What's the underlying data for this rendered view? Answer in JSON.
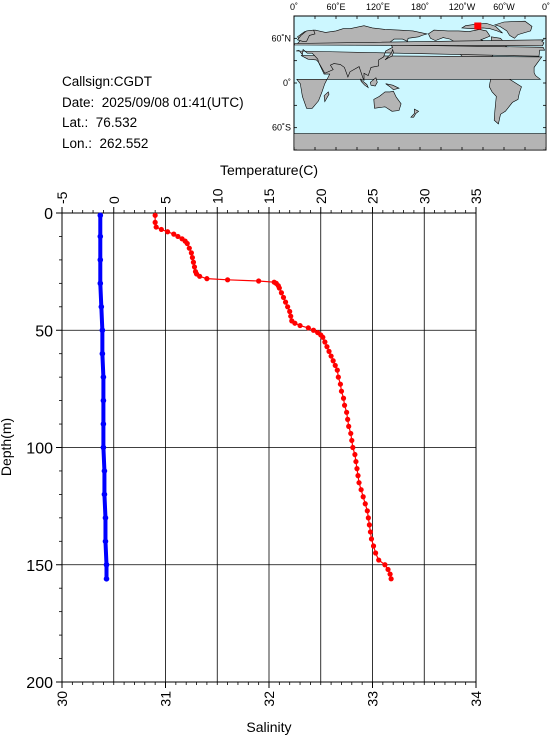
{
  "station": {
    "callsign": "Callsign:CGDT",
    "date_label": "Date:",
    "date_value": "2025/09/08 01:41(UTC)",
    "lat_label": "Lat.:",
    "lat_value": "76.532",
    "lon_label": "Lon.:",
    "lon_value": "262.552"
  },
  "map": {
    "top_ticks": [
      "0˚",
      "60˚E",
      "120˚E",
      "180˚",
      "120˚W",
      "60˚W",
      "0˚"
    ],
    "lat_ticks": [
      "60˚N",
      "0˚",
      "60˚S"
    ],
    "marker_lat": 76.532,
    "marker_lon": 262.552,
    "colors": {
      "ocean": "#ccf7ff",
      "land": "#b4b4b4",
      "coast": "#000000",
      "marker": "#ff0000"
    }
  },
  "chart_data": {
    "type": "line",
    "y_axis": {
      "label": "Depth(m)",
      "range": [
        0,
        200
      ],
      "inverted": true,
      "ticks": [
        0,
        50,
        100,
        150,
        200
      ]
    },
    "top_axis": {
      "label": "Temperature(C)",
      "range": [
        -5,
        35
      ],
      "ticks": [
        -5,
        0,
        5,
        10,
        15,
        20,
        25,
        30,
        35
      ]
    },
    "bottom_axis": {
      "label": "Salinity",
      "range": [
        30,
        34
      ],
      "ticks": [
        30,
        31,
        32,
        33,
        34
      ]
    },
    "grid": true,
    "series": [
      {
        "variable": "temperature",
        "axis": "top",
        "color": "#ff0000",
        "depth": [
          1,
          4,
          6,
          7,
          8,
          9,
          10,
          11,
          12,
          13,
          15,
          17,
          19,
          21,
          23,
          25,
          26,
          27,
          28,
          28.5,
          29,
          29.5,
          30,
          31,
          32,
          34,
          36,
          38,
          40,
          42,
          44,
          46,
          47,
          48,
          49,
          50,
          51,
          52,
          53,
          55,
          57,
          59,
          61,
          63,
          65,
          67,
          70,
          73,
          76,
          79,
          82,
          85,
          88,
          91,
          94,
          97,
          100,
          103,
          106,
          109,
          112,
          115,
          118,
          121,
          124,
          127,
          130,
          133,
          136,
          139,
          142,
          145,
          148,
          150,
          152,
          154,
          156
        ],
        "values": [
          4.0,
          4.0,
          4.1,
          4.6,
          5.2,
          5.8,
          6.2,
          6.6,
          6.9,
          7.1,
          7.3,
          7.5,
          7.6,
          7.7,
          7.8,
          7.9,
          8.0,
          8.3,
          9.0,
          11.0,
          14.0,
          15.5,
          15.7,
          15.9,
          16.0,
          16.2,
          16.4,
          16.6,
          16.8,
          17.0,
          17.1,
          17.2,
          17.5,
          18.0,
          18.8,
          19.3,
          19.7,
          20.0,
          20.2,
          20.4,
          20.6,
          20.8,
          21.0,
          21.2,
          21.4,
          21.6,
          21.7,
          21.9,
          22.0,
          22.2,
          22.3,
          22.5,
          22.6,
          22.7,
          22.9,
          23.0,
          23.1,
          23.3,
          23.4,
          23.5,
          23.6,
          23.7,
          23.9,
          24.1,
          24.3,
          24.5,
          24.6,
          24.7,
          24.8,
          24.9,
          25.1,
          25.3,
          25.6,
          26.2,
          26.5,
          26.7,
          26.8
        ]
      },
      {
        "variable": "salinity",
        "axis": "bottom",
        "color": "#0000ff",
        "depth": [
          1,
          10,
          20,
          30,
          40,
          50,
          60,
          70,
          80,
          90,
          100,
          110,
          120,
          130,
          140,
          150,
          156
        ],
        "values": [
          30.37,
          30.37,
          30.37,
          30.37,
          30.38,
          30.39,
          30.39,
          30.4,
          30.4,
          30.4,
          30.4,
          30.41,
          30.41,
          30.42,
          30.42,
          30.43,
          30.43
        ]
      }
    ]
  }
}
